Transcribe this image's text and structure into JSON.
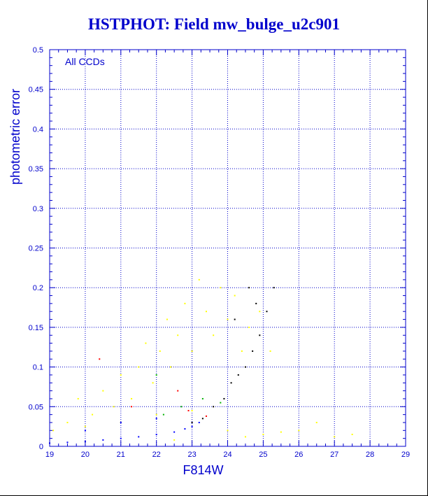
{
  "colors": {
    "title": "#0000cc",
    "axis": "#0000cc",
    "grid": "#0000cc",
    "ccd_all": "#ffff00",
    "ccd_pc": "#0000ff",
    "ccd_faint": "#000000",
    "ccd_green": "#00b000",
    "ccd_red": "#ff0000"
  },
  "chart_data": {
    "type": "scatter",
    "title": "HSTPHOT: Field mw_bulge_u2c901",
    "xlabel": "F814W",
    "ylabel": "photometric error",
    "annotation": "All CCDs",
    "xlim": [
      19,
      29
    ],
    "ylim": [
      0,
      0.5
    ],
    "grid": true,
    "xticks": [
      "19",
      "20",
      "21",
      "22",
      "23",
      "24",
      "25",
      "26",
      "27",
      "28",
      "29"
    ],
    "yticks": [
      "0",
      "0.05",
      "0.1",
      "0.15",
      "0.2",
      "0.25",
      "0.3",
      "0.35",
      "0.4",
      "0.45",
      "0.5"
    ],
    "series": [
      {
        "color_key": "ccd_all",
        "points": [
          [
            19.1,
            0.02
          ],
          [
            19.5,
            0.03
          ],
          [
            19.8,
            0.06
          ],
          [
            20.2,
            0.04
          ],
          [
            20.5,
            0.07
          ],
          [
            20.8,
            0.05
          ],
          [
            21.0,
            0.09
          ],
          [
            21.3,
            0.06
          ],
          [
            21.5,
            0.1
          ],
          [
            21.7,
            0.13
          ],
          [
            21.9,
            0.08
          ],
          [
            22.1,
            0.12
          ],
          [
            22.3,
            0.16
          ],
          [
            22.4,
            0.1
          ],
          [
            22.6,
            0.14
          ],
          [
            22.8,
            0.18
          ],
          [
            23.0,
            0.12
          ],
          [
            23.2,
            0.21
          ],
          [
            23.4,
            0.17
          ],
          [
            23.6,
            0.14
          ],
          [
            23.8,
            0.2
          ],
          [
            24.0,
            0.16
          ],
          [
            24.2,
            0.19
          ],
          [
            24.4,
            0.12
          ],
          [
            24.6,
            0.15
          ],
          [
            24.9,
            0.17
          ],
          [
            25.2,
            0.12
          ],
          [
            20.0,
            0.025
          ],
          [
            21.0,
            0.03
          ],
          [
            22.0,
            0.04
          ],
          [
            23.0,
            0.045
          ],
          [
            24.0,
            0.02
          ],
          [
            25.0,
            0.015
          ],
          [
            26.0,
            0.02
          ],
          [
            27.0,
            0.012
          ],
          [
            22.5,
            0.008
          ],
          [
            24.5,
            0.012
          ],
          [
            25.5,
            0.018
          ],
          [
            26.5,
            0.03
          ],
          [
            27.5,
            0.015
          ]
        ]
      },
      {
        "color_key": "ccd_pc",
        "points": [
          [
            19.0,
            0.004
          ],
          [
            19.5,
            0.005
          ],
          [
            20.0,
            0.006
          ],
          [
            20.5,
            0.008
          ],
          [
            21.0,
            0.01
          ],
          [
            21.5,
            0.012
          ],
          [
            22.0,
            0.015
          ],
          [
            22.5,
            0.018
          ],
          [
            22.8,
            0.022
          ],
          [
            23.0,
            0.025
          ],
          [
            23.2,
            0.03
          ],
          [
            20.0,
            0.02
          ],
          [
            21.0,
            0.03
          ],
          [
            22.0,
            0.035
          ]
        ]
      },
      {
        "color_key": "ccd_faint",
        "points": [
          [
            23.0,
            0.03
          ],
          [
            23.3,
            0.035
          ],
          [
            23.6,
            0.05
          ],
          [
            23.9,
            0.06
          ],
          [
            24.1,
            0.08
          ],
          [
            24.3,
            0.09
          ],
          [
            24.5,
            0.1
          ],
          [
            24.7,
            0.12
          ],
          [
            24.9,
            0.14
          ],
          [
            25.1,
            0.17
          ],
          [
            25.3,
            0.2
          ],
          [
            24.2,
            0.16
          ],
          [
            24.6,
            0.2
          ],
          [
            24.8,
            0.18
          ]
        ]
      },
      {
        "color_key": "ccd_green",
        "points": [
          [
            22.2,
            0.04
          ],
          [
            22.7,
            0.05
          ],
          [
            23.3,
            0.06
          ],
          [
            23.8,
            0.055
          ],
          [
            22.0,
            0.09
          ]
        ]
      },
      {
        "color_key": "ccd_red",
        "points": [
          [
            20.4,
            0.11
          ],
          [
            21.3,
            0.05
          ],
          [
            22.9,
            0.045
          ],
          [
            23.4,
            0.038
          ],
          [
            22.6,
            0.07
          ]
        ]
      }
    ]
  }
}
